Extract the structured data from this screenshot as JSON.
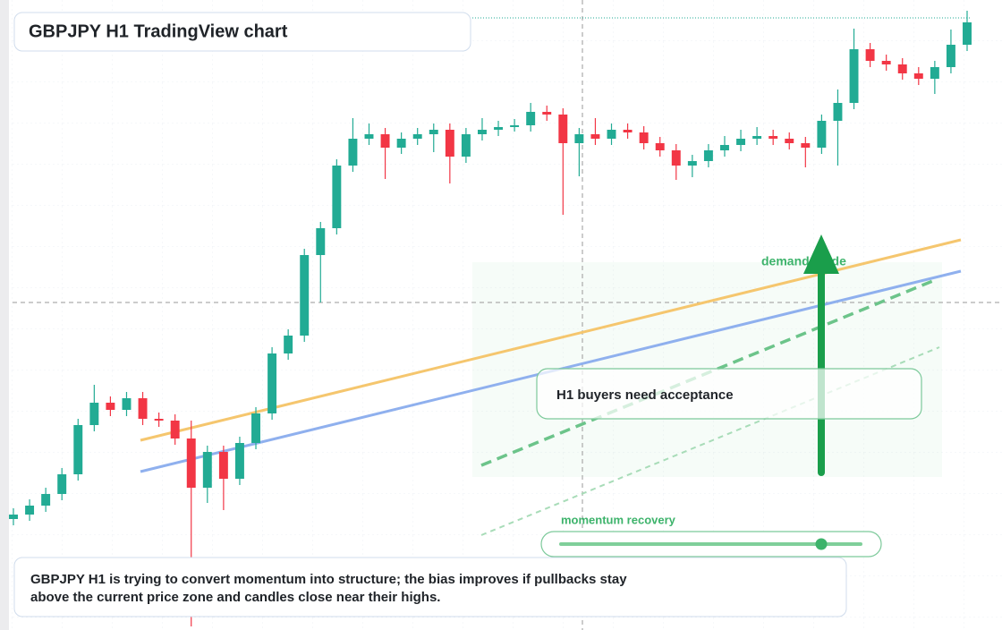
{
  "chart_data": {
    "type": "candlestick",
    "title": "GBPJPY H1 TradingView chart",
    "open": [
      124,
      129,
      139,
      152,
      174,
      229,
      254,
      246,
      259,
      236,
      234,
      214,
      159,
      199,
      169,
      209,
      242,
      309,
      329,
      419,
      449,
      519,
      549,
      554,
      539,
      549,
      554,
      559,
      529,
      554,
      559,
      562,
      564,
      579,
      576,
      544,
      554,
      549,
      559,
      556,
      544,
      536,
      519,
      524,
      536,
      542,
      549,
      552,
      549,
      544,
      539,
      569,
      589,
      649,
      636,
      632,
      622,
      616,
      629,
      654
    ],
    "high": [
      136,
      146,
      159,
      181,
      236,
      274,
      261,
      266,
      266,
      243,
      241,
      234,
      206,
      206,
      216,
      249,
      316,
      336,
      426,
      456,
      526,
      572,
      566,
      561,
      556,
      561,
      566,
      566,
      561,
      572,
      569,
      571,
      589,
      586,
      583,
      561,
      572,
      566,
      566,
      563,
      551,
      543,
      531,
      543,
      552,
      559,
      562,
      559,
      556,
      551,
      576,
      604,
      672,
      656,
      643,
      639,
      629,
      636,
      671,
      692
    ],
    "low": [
      117,
      122,
      132,
      145,
      167,
      222,
      239,
      239,
      229,
      227,
      207,
      4,
      142,
      134,
      162,
      202,
      235,
      302,
      322,
      366,
      442,
      512,
      542,
      504,
      532,
      542,
      534,
      499,
      522,
      547,
      552,
      557,
      557,
      569,
      464,
      507,
      542,
      542,
      549,
      537,
      529,
      503,
      506,
      517,
      529,
      535,
      542,
      542,
      537,
      517,
      532,
      519,
      582,
      629,
      625,
      615,
      609,
      599,
      622,
      647
    ],
    "close": [
      129,
      139,
      152,
      174,
      229,
      254,
      246,
      259,
      236,
      234,
      214,
      159,
      199,
      169,
      209,
      242,
      309,
      329,
      419,
      449,
      519,
      549,
      554,
      539,
      549,
      554,
      559,
      529,
      554,
      559,
      562,
      564,
      579,
      576,
      544,
      554,
      549,
      559,
      556,
      544,
      536,
      519,
      524,
      536,
      542,
      549,
      552,
      549,
      544,
      539,
      569,
      589,
      649,
      636,
      632,
      622,
      616,
      629,
      654,
      679
    ],
    "ylim": [
      0,
      704
    ],
    "colors": {
      "up": "#22ab94",
      "down": "#f23645"
    },
    "annotations": {
      "guide": "demand guide",
      "callout": "H1 buyers need acceptance",
      "momentum": "momentum recovery"
    },
    "note": [
      "GBPJPY H1 is trying to convert momentum into structure; the bias improves if pullbacks stay",
      "above the current price zone and candles close near their highs."
    ]
  }
}
